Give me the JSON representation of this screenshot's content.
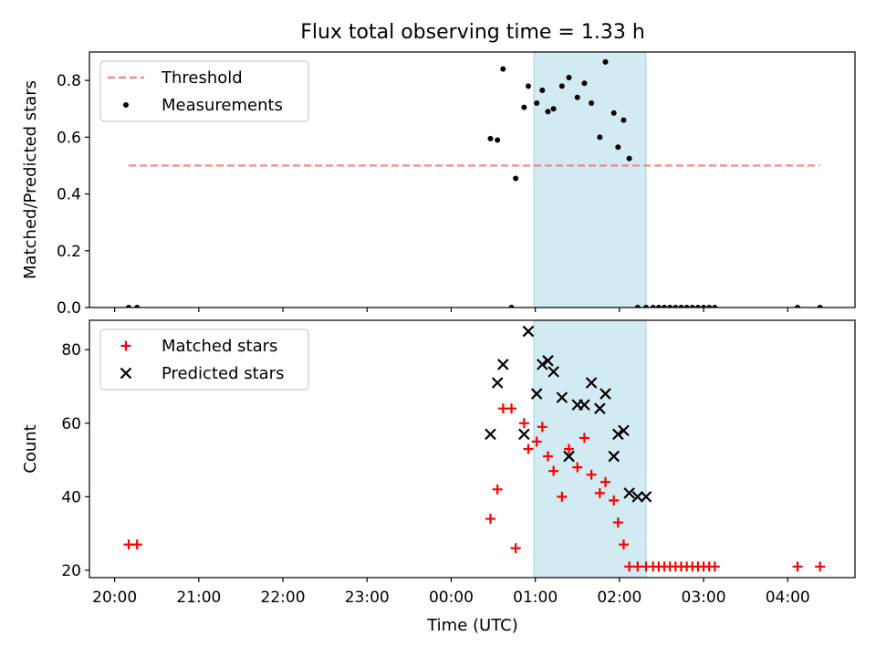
{
  "figure": {
    "title": "Flux total observing time = 1.33 h",
    "xlabel": "Time (UTC)"
  },
  "chart_data": [
    {
      "type": "scatter",
      "panel": "top",
      "ylabel": "Matched/Predicted stars",
      "ylim": [
        0,
        0.9
      ],
      "yticks": [
        0.0,
        0.2,
        0.4,
        0.6,
        0.8
      ],
      "ytick_labels": [
        "0.0",
        "0.2",
        "0.4",
        "0.6",
        "0.8"
      ],
      "xlim_hours": [
        -0.3,
        8.8
      ],
      "xticks_hours": [
        0,
        1,
        2,
        3,
        4,
        5,
        6,
        7,
        8
      ],
      "xtick_labels": [
        "20:00",
        "21:00",
        "22:00",
        "23:00",
        "00:00",
        "01:00",
        "02:00",
        "03:00",
        "04:00"
      ],
      "highlight_span": {
        "from": "00:59",
        "to": "02:19",
        "color": "#add8e6"
      },
      "legend": {
        "placement": "top-left",
        "entries": [
          "Threshold",
          "Measurements"
        ]
      },
      "series": [
        {
          "name": "Threshold",
          "kind": "dashed-line",
          "color": "#ff7f7f",
          "x": [
            "20:10",
            "04:23"
          ],
          "y": [
            0.5,
            0.5
          ]
        },
        {
          "name": "Measurements",
          "kind": "dot",
          "color": "#000000",
          "x": [
            "20:10",
            "20:16",
            "00:28",
            "00:33",
            "00:37",
            "00:43",
            "00:46",
            "00:52",
            "00:55",
            "01:01",
            "01:05",
            "01:09",
            "01:13",
            "01:19",
            "01:24",
            "01:30",
            "01:35",
            "01:40",
            "01:46",
            "01:50",
            "01:56",
            "01:59",
            "02:03",
            "02:07",
            "02:13",
            "02:19",
            "02:24",
            "02:28",
            "02:32",
            "02:36",
            "02:40",
            "02:44",
            "02:48",
            "02:52",
            "02:56",
            "03:00",
            "03:04",
            "03:08",
            "04:07",
            "04:23"
          ],
          "y": [
            0,
            0,
            0.595,
            0.59,
            0.84,
            0,
            0.455,
            0.705,
            0.78,
            0.72,
            0.765,
            0.69,
            0.7,
            0.78,
            0.81,
            0.74,
            0.79,
            0.72,
            0.6,
            0.865,
            0.685,
            0.565,
            0.66,
            0.525,
            0,
            0,
            0,
            0,
            0,
            0,
            0,
            0,
            0,
            0,
            0,
            0,
            0,
            0,
            0,
            0
          ]
        }
      ]
    },
    {
      "type": "scatter",
      "panel": "bottom",
      "ylabel": "Count",
      "ylim": [
        18,
        88
      ],
      "yticks": [
        20,
        40,
        60,
        80
      ],
      "ytick_labels": [
        "20",
        "40",
        "60",
        "80"
      ],
      "xlim_hours": [
        -0.3,
        8.8
      ],
      "xticks_hours": [
        0,
        1,
        2,
        3,
        4,
        5,
        6,
        7,
        8
      ],
      "xtick_labels": [
        "20:00",
        "21:00",
        "22:00",
        "23:00",
        "00:00",
        "01:00",
        "02:00",
        "03:00",
        "04:00"
      ],
      "highlight_span": {
        "from": "00:59",
        "to": "02:19",
        "color": "#add8e6"
      },
      "legend": {
        "placement": "top-left",
        "entries": [
          "Matched stars",
          "Predicted stars"
        ]
      },
      "series": [
        {
          "name": "Matched stars",
          "kind": "plus",
          "color": "#ff0000",
          "x": [
            "20:10",
            "20:16",
            "00:28",
            "00:33",
            "00:37",
            "00:43",
            "00:46",
            "00:52",
            "00:55",
            "01:01",
            "01:05",
            "01:09",
            "01:13",
            "01:19",
            "01:24",
            "01:30",
            "01:35",
            "01:40",
            "01:46",
            "01:50",
            "01:56",
            "01:59",
            "02:03",
            "02:07",
            "02:13",
            "02:19",
            "02:24",
            "02:28",
            "02:32",
            "02:36",
            "02:40",
            "02:44",
            "02:48",
            "02:52",
            "02:56",
            "03:00",
            "03:04",
            "03:08",
            "04:07",
            "04:23"
          ],
          "y": [
            27,
            27,
            34,
            42,
            64,
            64,
            26,
            60,
            53,
            55,
            59,
            51,
            47,
            40,
            53,
            48,
            56,
            46,
            41,
            44,
            39,
            33,
            27,
            21,
            21,
            21,
            21,
            21,
            21,
            21,
            21,
            21,
            21,
            21,
            21,
            21,
            21,
            21,
            21,
            21
          ]
        },
        {
          "name": "Predicted stars",
          "kind": "x",
          "color": "#000000",
          "x": [
            "00:28",
            "00:33",
            "00:37",
            "00:52",
            "00:55",
            "01:01",
            "01:05",
            "01:09",
            "01:13",
            "01:19",
            "01:24",
            "01:30",
            "01:35",
            "01:40",
            "01:46",
            "01:50",
            "01:56",
            "01:59",
            "02:03",
            "02:07",
            "02:13",
            "02:19"
          ],
          "y": [
            57,
            71,
            76,
            57,
            85,
            68,
            76,
            77,
            74,
            67,
            51,
            65,
            65,
            71,
            64,
            68,
            51,
            57,
            58,
            41,
            40,
            40
          ]
        }
      ]
    }
  ]
}
